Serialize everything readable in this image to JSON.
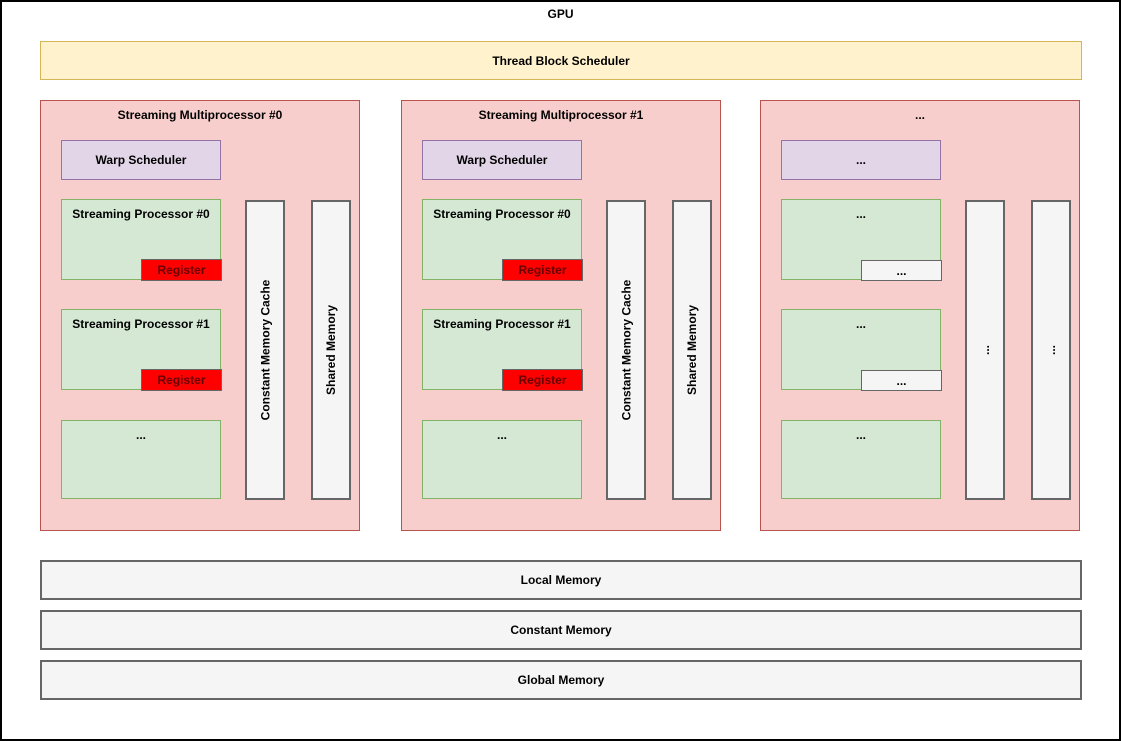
{
  "colors": {
    "canvas-border": "#000000",
    "text": "#000000",
    "pink-fill": "#f8cecc",
    "pink-border": "#b85450",
    "green-fill": "#d5e8d4",
    "green-border": "#82b366",
    "purple-fill": "#e1d5e7",
    "purple-border": "#9673a6",
    "yellow-fill": "#fff2cc",
    "yellow-border": "#d6b656",
    "gray-fill": "#f5f5f5",
    "gray-border": "#666666",
    "register-fill": "#ff0000",
    "register-text": "#660000"
  },
  "gpu": {
    "title": "GPU",
    "thread_block_scheduler": "Thread Block Scheduler",
    "sms": [
      {
        "title": "Streaming Multiprocessor #0",
        "warp_scheduler": "Warp Scheduler",
        "processors": [
          {
            "label": "Streaming Processor #0",
            "register": "Register"
          },
          {
            "label": "Streaming Processor #1",
            "register": "Register"
          },
          {
            "label": "..."
          }
        ],
        "constant_memory_cache": "Constant Memory Cache",
        "shared_memory": "Shared Memory"
      },
      {
        "title": "Streaming Multiprocessor #1",
        "warp_scheduler": "Warp Scheduler",
        "processors": [
          {
            "label": "Streaming Processor #0",
            "register": "Register"
          },
          {
            "label": "Streaming Processor #1",
            "register": "Register"
          },
          {
            "label": "..."
          }
        ],
        "constant_memory_cache": "Constant Memory Cache",
        "shared_memory": "Shared Memory"
      },
      {
        "title": "...",
        "warp_scheduler": "...",
        "processors": [
          {
            "label": "...",
            "register": "..."
          },
          {
            "label": "...",
            "register": "..."
          },
          {
            "label": "..."
          }
        ],
        "constant_memory_cache": "...",
        "shared_memory": "..."
      }
    ],
    "memories": [
      {
        "label": "Local Memory"
      },
      {
        "label": "Constant Memory"
      },
      {
        "label": "Global Memory"
      }
    ]
  }
}
